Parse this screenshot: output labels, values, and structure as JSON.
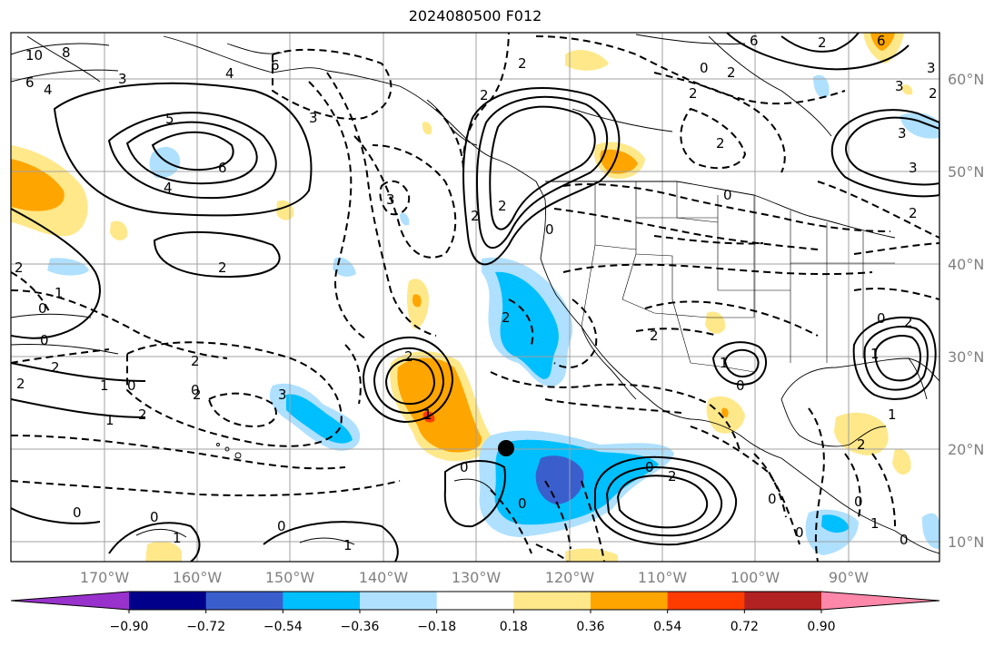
{
  "map": {
    "title": "2024080500 F012",
    "lon_labels": [
      "170°W",
      "160°W",
      "150°W",
      "140°W",
      "130°W",
      "120°W",
      "110°W",
      "100°W",
      "90°W"
    ],
    "lat_labels": [
      "60°N",
      "50°N",
      "40°N",
      "30°N",
      "20°N",
      "10°N"
    ],
    "colorbar": {
      "ticks": [
        "−0.90",
        "−0.72",
        "−0.54",
        "−0.36",
        "−0.18",
        "0.18",
        "0.36",
        "0.54",
        "0.72",
        "0.90"
      ],
      "colors": [
        "#9932cc",
        "#00008b",
        "#3a5fcd",
        "#00bfff",
        "#afe0ff",
        "#ffffff",
        "#ffe88a",
        "#ffa500",
        "#ff3c00",
        "#b22222",
        "#ff88aa"
      ]
    },
    "contour_labels": [
      "10",
      "8",
      "6",
      "4",
      "3",
      "4",
      "6",
      "6",
      "5",
      "2",
      "4",
      "6",
      "3",
      "2",
      "2",
      "0",
      "2",
      "3",
      "2",
      "3",
      "2",
      "2",
      "0",
      "3",
      "2",
      "0",
      "1",
      "0",
      "2",
      "1",
      "2",
      "0",
      "3",
      "2",
      "2",
      "1",
      "0",
      "0",
      "1",
      "0",
      "1",
      "1",
      "0",
      "2",
      "2",
      "0",
      "0",
      "0",
      "2",
      "2",
      "2",
      "0",
      "0",
      "1",
      "0",
      "0",
      "1",
      "0",
      "2",
      "1",
      "1",
      "0",
      "2",
      "2",
      "3",
      "6",
      "3",
      "2",
      "2",
      "2",
      "0"
    ]
  }
}
